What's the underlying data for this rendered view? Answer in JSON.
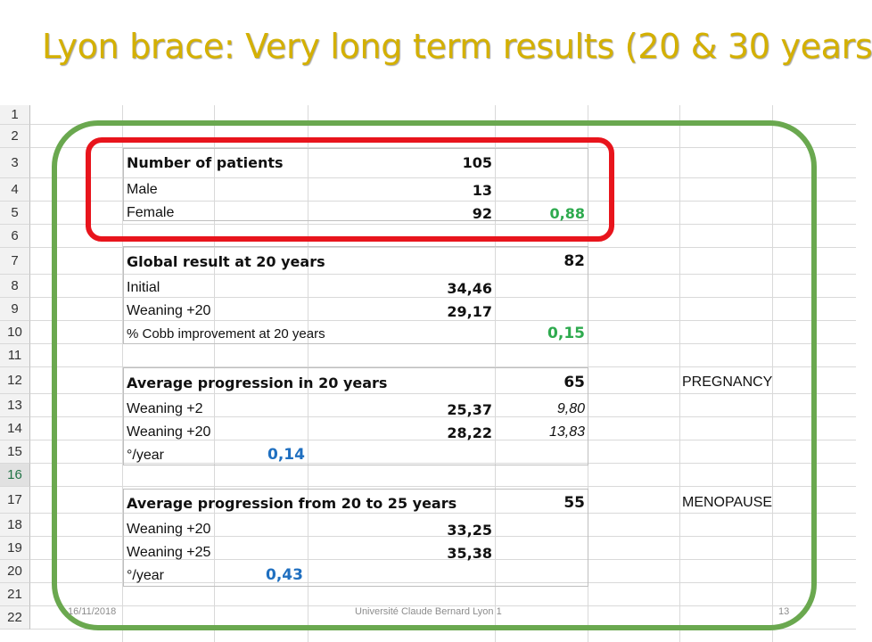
{
  "slide": {
    "title": "Lyon brace: Very long term results (20 & 30 years",
    "footer_date": "16/11/2018",
    "footer_center": "Université Claude Bernard Lyon 1",
    "footer_page": "13"
  },
  "rows": {
    "numbers": [
      "1",
      "2",
      "3",
      "4",
      "5",
      "6",
      "7",
      "8",
      "9",
      "10",
      "11",
      "12",
      "13",
      "14",
      "15",
      "16",
      "17",
      "18",
      "19",
      "20",
      "21",
      "22"
    ]
  },
  "patients": {
    "header": "Number of patients",
    "total": "105",
    "male_label": "Male",
    "male_value": "13",
    "female_label": "Female",
    "female_value": "92",
    "female_ratio": "0,88"
  },
  "global": {
    "header": "Global result at 20 years",
    "count": "82",
    "initial_label": "Initial",
    "initial_value": "34,46",
    "weaning_label": "Weaning +20",
    "weaning_value": "29,17",
    "cobb_label": "% Cobb improvement at 20 years",
    "cobb_value": "0,15"
  },
  "progression20": {
    "header": "Average progression in 20 years",
    "count": "65",
    "note": "PREGNANCY",
    "w2_label": "Weaning +2",
    "w2_value": "25,37",
    "w2_extra": "9,80",
    "w20_label": "Weaning +20",
    "w20_value": "28,22",
    "w20_extra": "13,83",
    "rate_label": "°/year",
    "rate_value": "0,14"
  },
  "progression25": {
    "header": "Average progression from 20 to 25 years",
    "count": "55",
    "note": "MENOPAUSE",
    "w20_label": "Weaning +20",
    "w20_value": "33,25",
    "w25_label": "Weaning +25",
    "w25_value": "35,38",
    "rate_label": "°/year",
    "rate_value": "0,43"
  },
  "colors": {
    "title": "#d4b000",
    "green_frame": "#6aa84f",
    "red_frame": "#e8141c",
    "green_value": "#2eaa4e",
    "blue_value": "#1f6fc0"
  }
}
